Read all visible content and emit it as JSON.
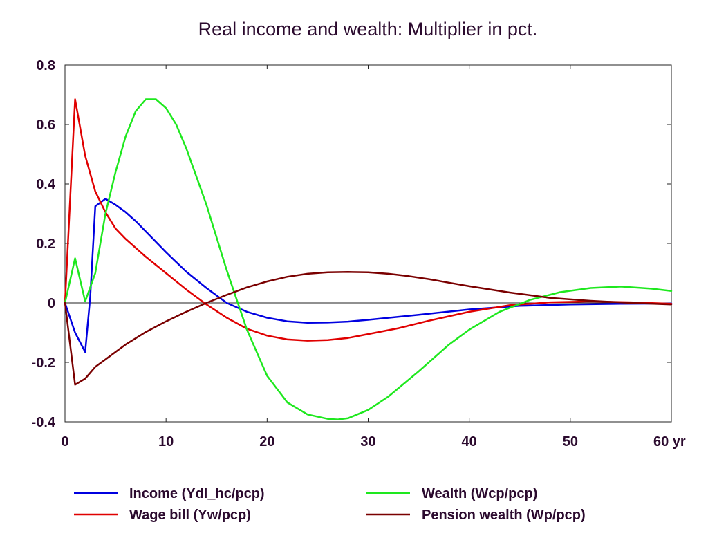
{
  "chart_data": {
    "type": "line",
    "title": "Real income and wealth: Multiplier in pct.",
    "x_unit_label": "yr",
    "xlim": [
      0,
      60
    ],
    "ylim": [
      -0.4,
      0.8
    ],
    "x_ticks": [
      0,
      10,
      20,
      30,
      40,
      50,
      60
    ],
    "x_tick_labels": [
      "0",
      "10",
      "20",
      "30",
      "40",
      "50",
      "60 yr"
    ],
    "y_ticks": [
      -0.4,
      -0.2,
      0,
      0.2,
      0.4,
      0.6,
      0.8
    ],
    "y_tick_labels": [
      "-0.4",
      "-0.2",
      "0",
      "0.2",
      "0.4",
      "0.6",
      "0.8"
    ],
    "zero_line": true,
    "grid": false,
    "legend_position": "bottom",
    "series": [
      {
        "name": "Income (Ydl_hc/pcp)",
        "color": "#0000e0",
        "x": [
          0,
          1,
          2,
          2.5,
          3,
          4,
          5,
          6,
          7,
          8,
          10,
          12,
          14,
          16,
          18,
          20,
          22,
          24,
          26,
          28,
          30,
          35,
          40,
          45,
          50,
          55,
          60
        ],
        "y": [
          0,
          -0.1,
          -0.165,
          0.02,
          0.325,
          0.35,
          0.33,
          0.305,
          0.275,
          0.24,
          0.17,
          0.105,
          0.05,
          0.0,
          -0.03,
          -0.05,
          -0.062,
          -0.067,
          -0.066,
          -0.063,
          -0.057,
          -0.04,
          -0.022,
          -0.01,
          -0.005,
          -0.003,
          -0.002
        ]
      },
      {
        "name": "Wage bill (Yw/pcp)",
        "color": "#e00000",
        "x": [
          0,
          1,
          2,
          3,
          4,
          5,
          6,
          8,
          10,
          12,
          14,
          16,
          18,
          20,
          22,
          24,
          26,
          28,
          30,
          33,
          36,
          40,
          44,
          48,
          52,
          56,
          60
        ],
        "y": [
          0,
          0.685,
          0.495,
          0.375,
          0.305,
          0.25,
          0.215,
          0.155,
          0.1,
          0.045,
          -0.005,
          -0.05,
          -0.087,
          -0.11,
          -0.123,
          -0.127,
          -0.125,
          -0.118,
          -0.105,
          -0.085,
          -0.06,
          -0.03,
          -0.008,
          0.002,
          0.005,
          0.002,
          -0.003
        ]
      },
      {
        "name": "Wealth (Wcp/pcp)",
        "color": "#1ee81e",
        "x": [
          0,
          1,
          2,
          3,
          4,
          5,
          6,
          7,
          8,
          9,
          10,
          11,
          12,
          14,
          16,
          18,
          20,
          22,
          24,
          26,
          27,
          28,
          30,
          32,
          35,
          38,
          40,
          43,
          46,
          49,
          52,
          55,
          58,
          60
        ],
        "y": [
          0,
          0.15,
          0.005,
          0.1,
          0.3,
          0.44,
          0.56,
          0.645,
          0.685,
          0.685,
          0.655,
          0.6,
          0.52,
          0.33,
          0.11,
          -0.09,
          -0.245,
          -0.335,
          -0.375,
          -0.39,
          -0.392,
          -0.388,
          -0.36,
          -0.315,
          -0.23,
          -0.14,
          -0.09,
          -0.03,
          0.01,
          0.036,
          0.05,
          0.055,
          0.048,
          0.04
        ]
      },
      {
        "name": "Pension wealth (Wp/pcp)",
        "color": "#7a0000",
        "x": [
          0,
          1,
          2,
          3,
          4,
          6,
          8,
          10,
          12,
          14,
          16,
          18,
          20,
          22,
          24,
          26,
          28,
          30,
          32,
          34,
          36,
          38,
          40,
          44,
          48,
          52,
          56,
          60
        ],
        "y": [
          0,
          -0.275,
          -0.255,
          -0.215,
          -0.19,
          -0.14,
          -0.098,
          -0.062,
          -0.03,
          0.0,
          0.027,
          0.052,
          0.072,
          0.088,
          0.098,
          0.103,
          0.104,
          0.103,
          0.098,
          0.09,
          0.08,
          0.068,
          0.056,
          0.035,
          0.017,
          0.007,
          0.0,
          -0.005
        ]
      }
    ]
  }
}
